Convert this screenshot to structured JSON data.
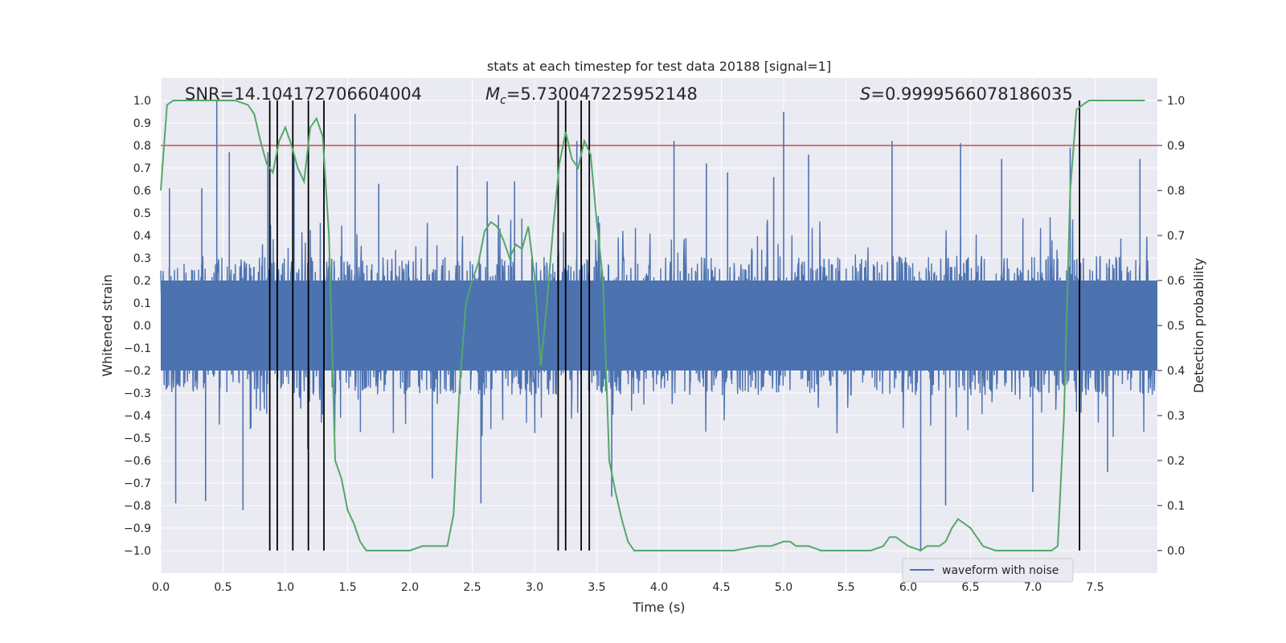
{
  "chart_data": {
    "type": "line",
    "title": "stats at each timestep for test data 20188 [signal=1]",
    "xlabel": "Time (s)",
    "ylabel": "Whitened strain",
    "y2label": "Detection probability",
    "xlim": [
      0.0,
      8.0
    ],
    "ylim": [
      -1.1,
      1.1
    ],
    "y2lim": [
      -0.05,
      1.05
    ],
    "xticks": [
      "0.0",
      "0.5",
      "1.0",
      "1.5",
      "2.0",
      "2.5",
      "3.0",
      "3.5",
      "4.0",
      "4.5",
      "5.0",
      "5.5",
      "6.0",
      "6.5",
      "7.0",
      "7.5"
    ],
    "yticks": [
      "1.0",
      "0.9",
      "0.8",
      "0.7",
      "0.6",
      "0.5",
      "0.4",
      "0.3",
      "0.2",
      "0.1",
      "0.0",
      "-0.1",
      "-0.2",
      "-0.3",
      "-0.4",
      "-0.5",
      "-0.6",
      "-0.7",
      "-0.8",
      "-0.9",
      "-1.0"
    ],
    "y2ticks": [
      "1.0",
      "0.9",
      "0.8",
      "0.7",
      "0.6",
      "0.5",
      "0.4",
      "0.3",
      "0.2",
      "0.1",
      "0.0"
    ],
    "grid": true,
    "annotations": {
      "snr": "SNR=14.104172706604004",
      "mc_symbol": "M",
      "mc_sub": "c",
      "mc_value": "=5.730047225952148",
      "s_symbol": "S",
      "s_value": "=0.9999566078186035"
    },
    "threshold": {
      "y": 0.8,
      "color": "#c44e52"
    },
    "vlines": [
      0.875,
      0.935,
      1.06,
      1.185,
      1.31,
      3.19,
      3.25,
      3.375,
      3.44,
      7.375
    ],
    "vline_range": [
      -1.0,
      1.0
    ],
    "series": [
      {
        "name": "waveform with noise",
        "color": "#4c72b0",
        "description_values": "random whitened noise, envelope approx +/-0.3 with spikes to +/-1.0",
        "spikes": [
          [
            0.07,
            0.61
          ],
          [
            0.12,
            -0.79
          ],
          [
            0.33,
            0.61
          ],
          [
            0.36,
            -0.78
          ],
          [
            0.45,
            1.0
          ],
          [
            0.55,
            0.77
          ],
          [
            0.66,
            -0.82
          ],
          [
            0.86,
            0.77
          ],
          [
            1.07,
            0.76
          ],
          [
            1.18,
            -0.55
          ],
          [
            1.56,
            0.94
          ],
          [
            1.75,
            0.63
          ],
          [
            2.18,
            -0.68
          ],
          [
            2.38,
            0.71
          ],
          [
            2.57,
            -0.79
          ],
          [
            2.62,
            0.64
          ],
          [
            2.84,
            0.64
          ],
          [
            3.34,
            0.82
          ],
          [
            3.62,
            -0.76
          ],
          [
            4.12,
            0.82
          ],
          [
            4.38,
            0.72
          ],
          [
            4.55,
            0.68
          ],
          [
            4.92,
            0.66
          ],
          [
            5.0,
            0.95
          ],
          [
            5.2,
            0.76
          ],
          [
            5.87,
            0.82
          ],
          [
            6.1,
            -1.0
          ],
          [
            6.3,
            -0.8
          ],
          [
            6.42,
            0.81
          ],
          [
            6.75,
            0.74
          ],
          [
            7.0,
            -0.74
          ],
          [
            7.3,
            0.79
          ],
          [
            7.6,
            -0.65
          ],
          [
            7.86,
            0.74
          ]
        ]
      },
      {
        "name": "detection probability",
        "color": "#55a868",
        "axis": "right",
        "x": [
          0.0,
          0.05,
          0.1,
          0.2,
          0.3,
          0.4,
          0.5,
          0.6,
          0.7,
          0.75,
          0.8,
          0.85,
          0.9,
          0.95,
          1.0,
          1.05,
          1.1,
          1.15,
          1.2,
          1.25,
          1.3,
          1.35,
          1.4,
          1.45,
          1.5,
          1.55,
          1.6,
          1.65,
          1.7,
          1.8,
          1.9,
          2.0,
          2.1,
          2.2,
          2.3,
          2.35,
          2.4,
          2.45,
          2.5,
          2.55,
          2.6,
          2.65,
          2.7,
          2.75,
          2.8,
          2.85,
          2.9,
          2.95,
          3.0,
          3.05,
          3.1,
          3.15,
          3.2,
          3.25,
          3.3,
          3.35,
          3.4,
          3.45,
          3.5,
          3.55,
          3.6,
          3.65,
          3.7,
          3.75,
          3.8,
          3.9,
          4.0,
          4.2,
          4.4,
          4.6,
          4.7,
          4.8,
          4.9,
          5.0,
          5.05,
          5.1,
          5.2,
          5.3,
          5.4,
          5.5,
          5.6,
          5.7,
          5.8,
          5.85,
          5.9,
          5.95,
          6.0,
          6.05,
          6.1,
          6.15,
          6.2,
          6.25,
          6.3,
          6.35,
          6.4,
          6.45,
          6.5,
          6.55,
          6.6,
          6.65,
          6.7,
          6.8,
          7.0,
          7.1,
          7.15,
          7.2,
          7.25,
          7.3,
          7.35,
          7.4,
          7.45,
          7.5,
          7.6,
          7.7,
          7.8,
          7.9
        ],
        "values": [
          0.8,
          0.99,
          1.0,
          1.0,
          1.0,
          1.0,
          1.0,
          1.0,
          0.99,
          0.97,
          0.91,
          0.86,
          0.84,
          0.91,
          0.94,
          0.9,
          0.85,
          0.82,
          0.94,
          0.96,
          0.92,
          0.7,
          0.2,
          0.16,
          0.09,
          0.06,
          0.02,
          0.0,
          0.0,
          0.0,
          0.0,
          0.0,
          0.01,
          0.01,
          0.01,
          0.08,
          0.37,
          0.55,
          0.6,
          0.64,
          0.71,
          0.73,
          0.72,
          0.69,
          0.65,
          0.68,
          0.67,
          0.72,
          0.61,
          0.41,
          0.55,
          0.72,
          0.86,
          0.93,
          0.87,
          0.85,
          0.91,
          0.88,
          0.73,
          0.6,
          0.2,
          0.13,
          0.07,
          0.02,
          0.0,
          0.0,
          0.0,
          0.0,
          0.0,
          0.0,
          0.005,
          0.01,
          0.01,
          0.02,
          0.02,
          0.01,
          0.01,
          0.0,
          0.0,
          0.0,
          0.0,
          0.0,
          0.01,
          0.03,
          0.03,
          0.02,
          0.01,
          0.005,
          0.0,
          0.01,
          0.01,
          0.01,
          0.02,
          0.05,
          0.07,
          0.06,
          0.05,
          0.03,
          0.01,
          0.005,
          0.0,
          0.0,
          0.0,
          0.0,
          0.0,
          0.01,
          0.3,
          0.8,
          0.98,
          0.99,
          1.0,
          1.0,
          1.0,
          1.0,
          1.0,
          1.0
        ]
      }
    ],
    "legend": {
      "placement": "lower-right",
      "entries": [
        "waveform with noise"
      ]
    }
  }
}
